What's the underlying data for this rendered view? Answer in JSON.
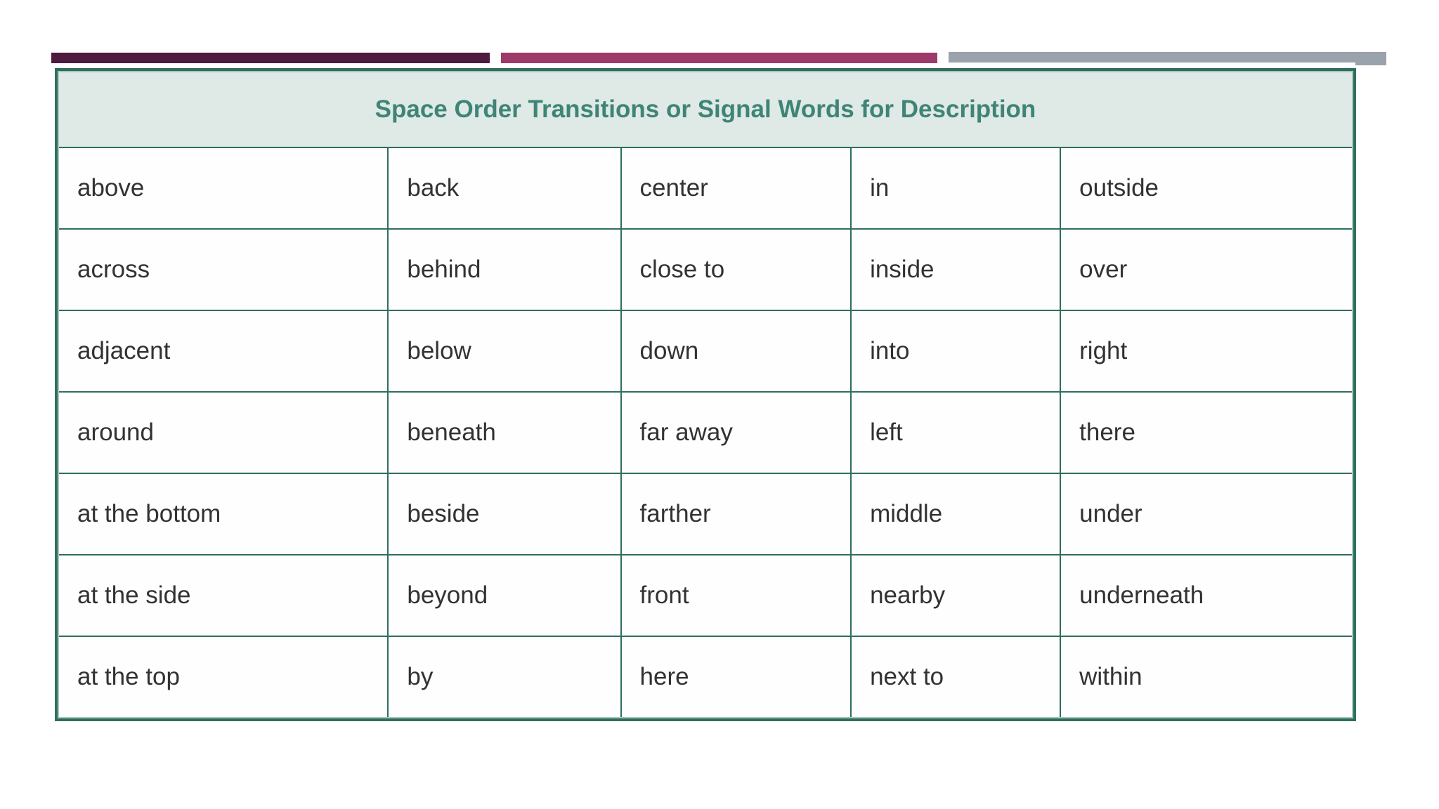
{
  "accent_bars": [
    {
      "name": "plum-bar",
      "color": "#4e1a3e"
    },
    {
      "name": "magenta-bar",
      "color": "#9e3a69"
    },
    {
      "name": "gray-bar",
      "color": "#9aa2ab"
    }
  ],
  "colors": {
    "table_border": "#2f6e5f",
    "table_border_highlight": "#a6c8bc",
    "header_bg": "#dfe9e5",
    "title_text": "#3e8477",
    "cell_text": "#323232",
    "cell_bg": "#fdfefd"
  },
  "table": {
    "title": "Space Order Transitions or Signal Words for Description",
    "columns": 5,
    "rows": [
      [
        "above",
        "back",
        "center",
        "in",
        "outside"
      ],
      [
        "across",
        "behind",
        "close to",
        "inside",
        "over"
      ],
      [
        "adjacent",
        "below",
        "down",
        "into",
        "right"
      ],
      [
        "around",
        "beneath",
        "far away",
        "left",
        "there"
      ],
      [
        "at the bottom",
        "beside",
        "farther",
        "middle",
        "under"
      ],
      [
        "at the side",
        "beyond",
        "front",
        "nearby",
        "underneath"
      ],
      [
        "at the top",
        "by",
        "here",
        "next to",
        "within"
      ]
    ]
  }
}
